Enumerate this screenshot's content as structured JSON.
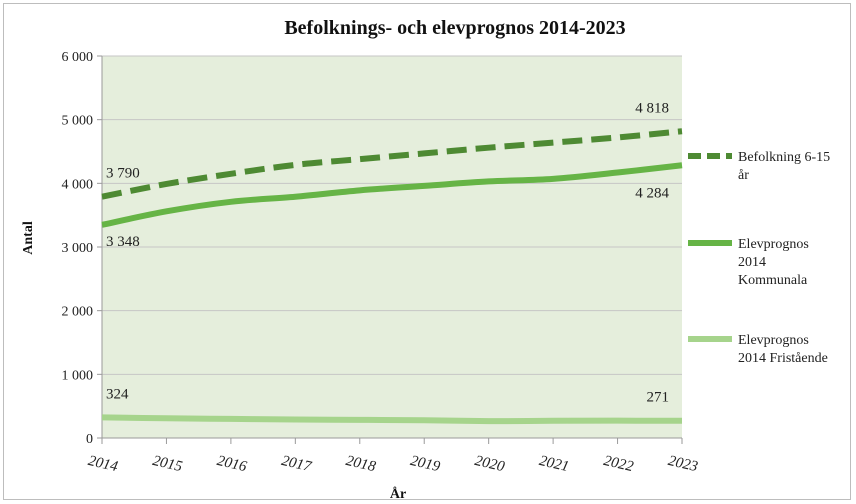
{
  "chart_data": {
    "type": "line",
    "title": "Befolknings- och elevprognos 2014-2023",
    "xlabel": "År",
    "ylabel": "Antal",
    "ylim": [
      0,
      6000
    ],
    "yticks": [
      0,
      1000,
      2000,
      3000,
      4000,
      5000,
      6000
    ],
    "ytick_labels": [
      "0",
      "1 000",
      "2 000",
      "3 000",
      "4 000",
      "5 000",
      "6 000"
    ],
    "categories": [
      "2014",
      "2015",
      "2016",
      "2017",
      "2018",
      "2019",
      "2020",
      "2021",
      "2022",
      "2023"
    ],
    "grid": true,
    "legend_position": "right",
    "plot_background": "#e5eedc",
    "series": [
      {
        "name": "Befolkning 6-15 år",
        "legend_lines": [
          "Befolkning 6-15",
          "år"
        ],
        "color": "#4e8a33",
        "style": "dashed",
        "values": [
          3790,
          3990,
          4150,
          4290,
          4380,
          4470,
          4560,
          4640,
          4720,
          4818
        ],
        "labels": {
          "start": "3 790",
          "end": "4 818"
        }
      },
      {
        "name": "Elevprognos 2014 Kommunala",
        "legend_lines": [
          "Elevprognos",
          "2014",
          "Kommunala"
        ],
        "color": "#66b446",
        "style": "solid",
        "values": [
          3348,
          3560,
          3710,
          3790,
          3890,
          3960,
          4030,
          4070,
          4170,
          4284
        ],
        "labels": {
          "start": "3 348",
          "end": "4 284"
        }
      },
      {
        "name": "Elevprognos 2014 Fristående",
        "legend_lines": [
          "Elevprognos",
          "2014 Fristående"
        ],
        "color": "#a6d48c",
        "style": "solid",
        "values": [
          324,
          310,
          300,
          290,
          285,
          278,
          265,
          270,
          272,
          271
        ],
        "labels": {
          "start": "324",
          "end": "271"
        }
      }
    ]
  }
}
